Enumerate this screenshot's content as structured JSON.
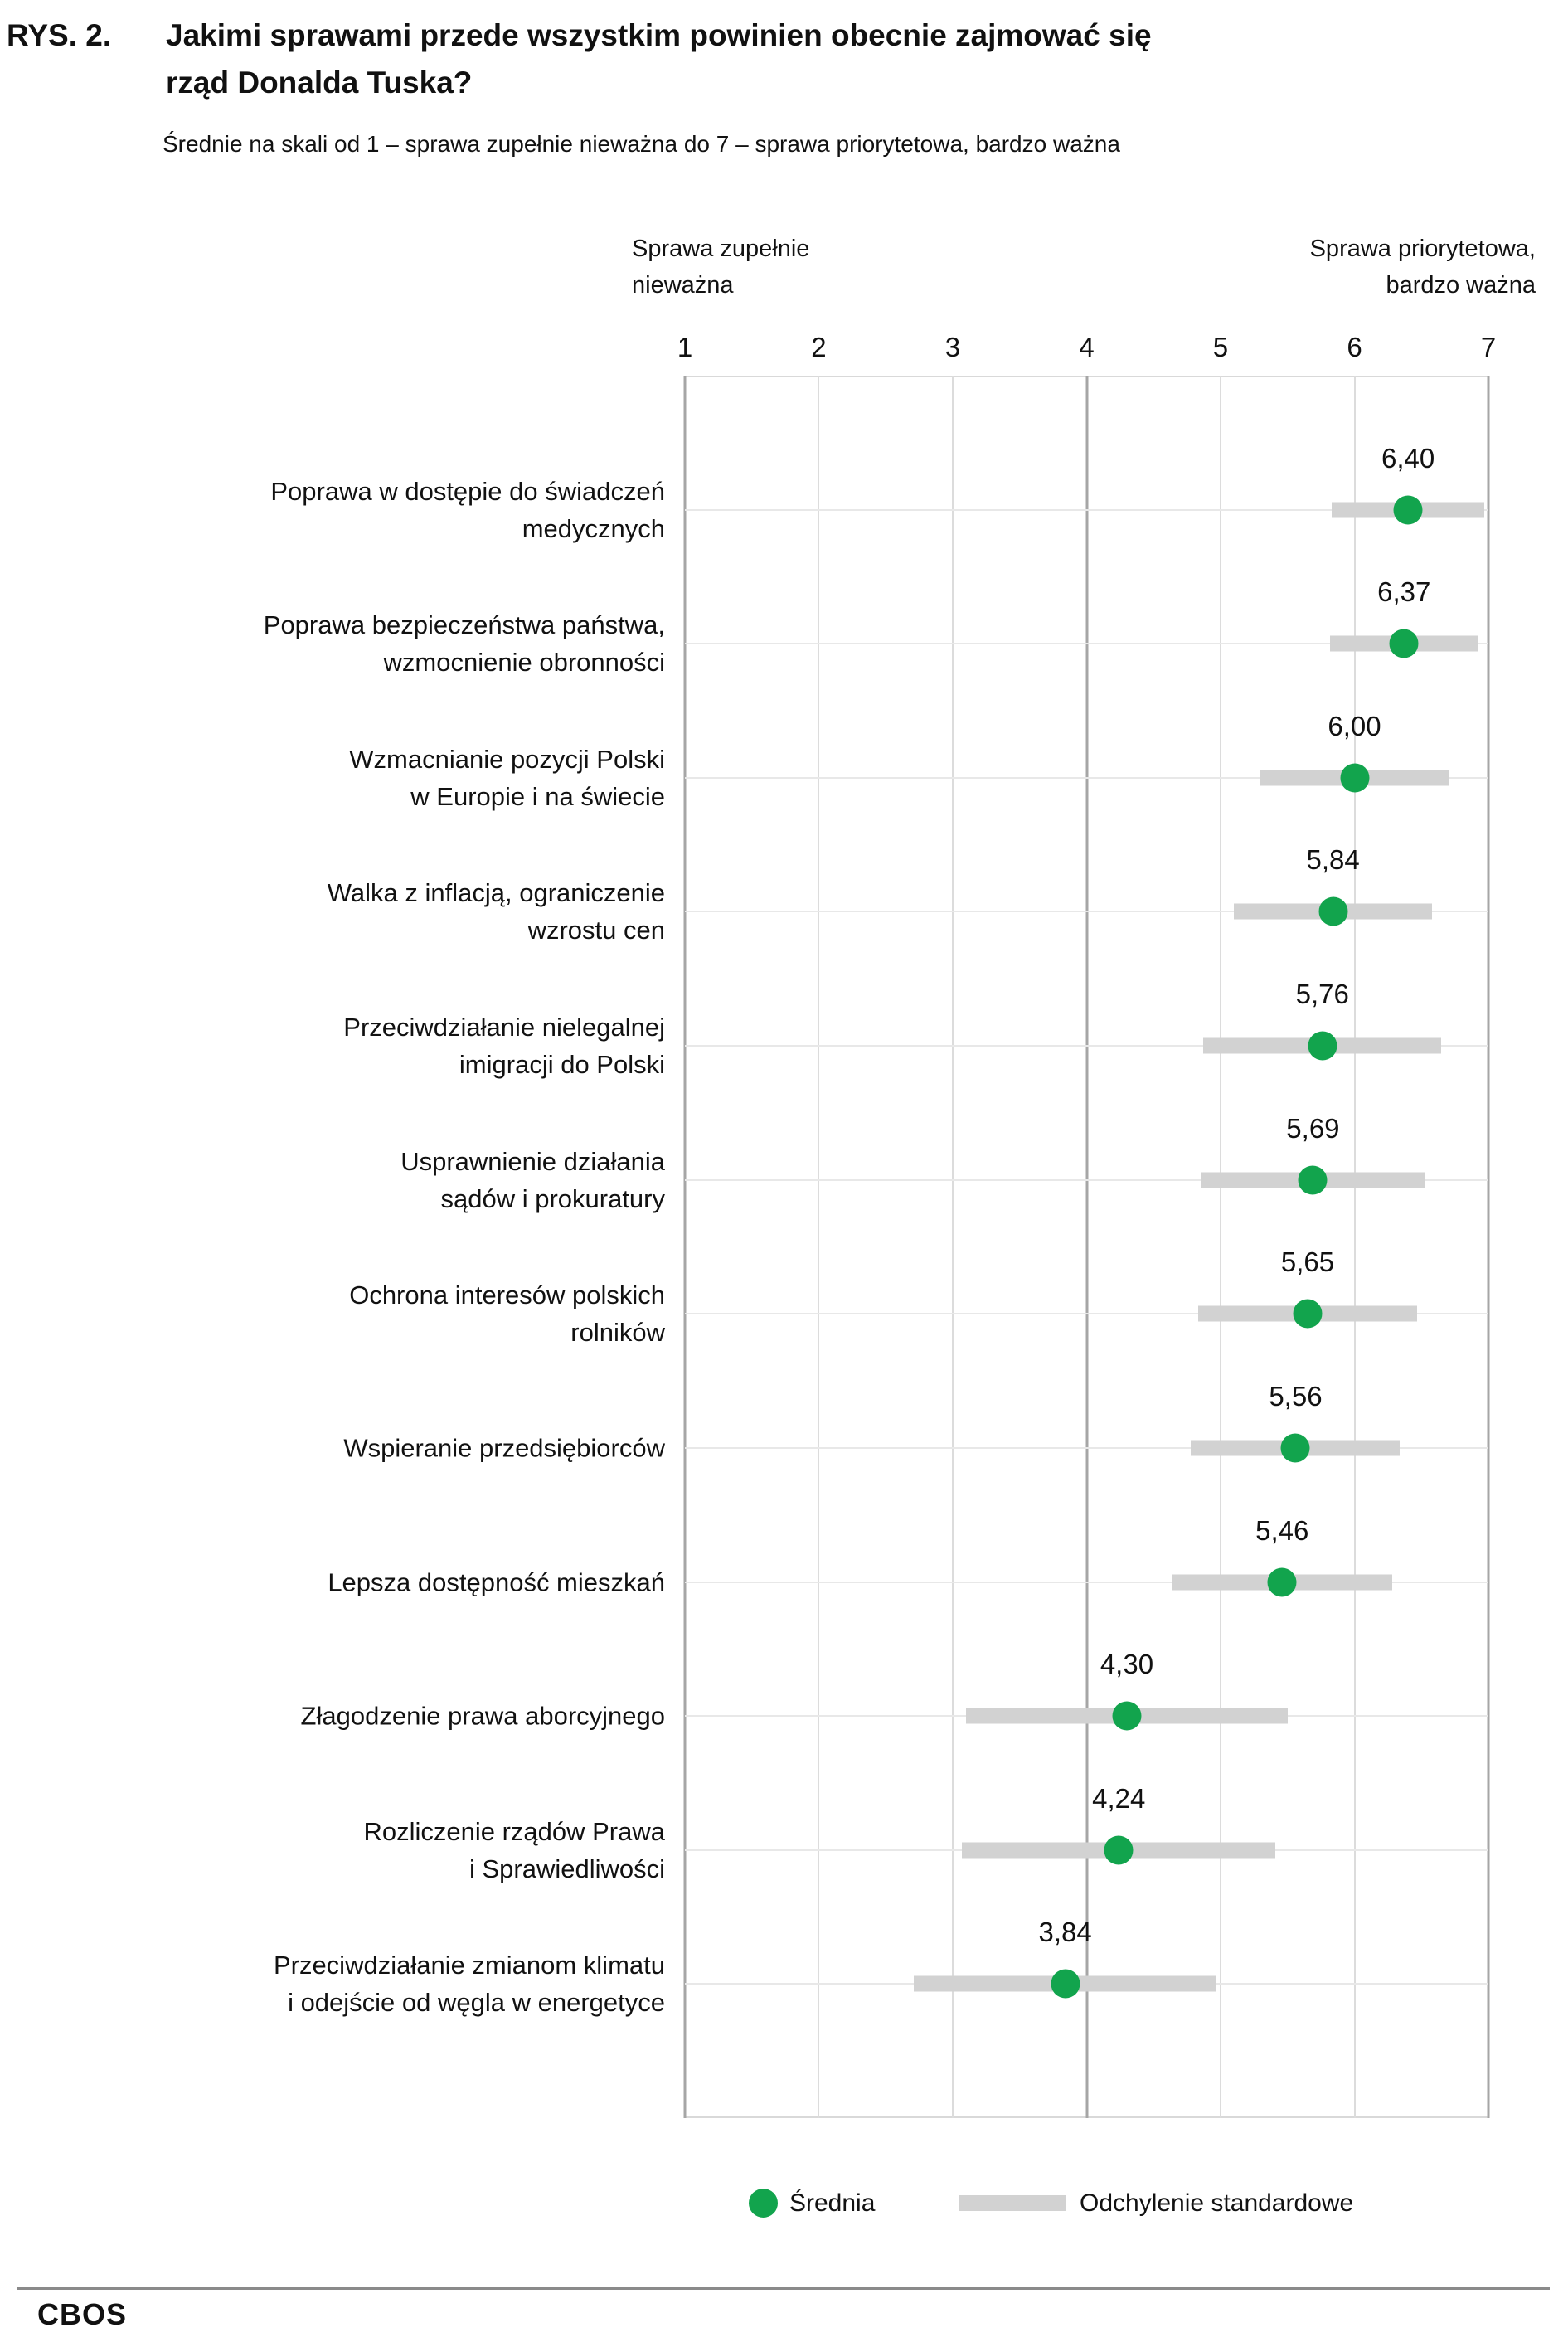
{
  "title": {
    "prefix": "RYS. 2.",
    "line1": "Jakimi sprawami przede wszystkim powinien obecnie zajmować się",
    "line2": "rząd Donalda Tuska?"
  },
  "subtitle": "Średnie na skali od 1 – sprawa zupełnie nieważna do 7 – sprawa priorytetowa, bardzo ważna",
  "axis": {
    "left_note": "Sprawa zupełnie\nnieważna",
    "right_note": "Sprawa priorytetowa,\nbardzo ważna"
  },
  "legend": {
    "mean_label": "Średnia",
    "sd_label": "Odchylenie standardowe"
  },
  "footer": {
    "brand": "CBOS"
  },
  "colors": {
    "mean_dot": "#12a44d",
    "sd_bar": "#d2d2d2",
    "grid_light": "#dcdcdc",
    "grid_row": "#e8e8e8",
    "grid_dark": "#a6a6a6",
    "text": "#111111"
  },
  "chart_data": {
    "type": "scatter",
    "subtype": "dot-plot-with-sd-range",
    "orientation": "horizontal",
    "xlim": [
      1,
      7
    ],
    "ticks": [
      1,
      2,
      3,
      4,
      5,
      6,
      7
    ],
    "emphasized_gridline": 4,
    "grid": true,
    "legend_position": "bottom",
    "title": "Jakimi sprawami przede wszystkim powinien obecnie zajmować się rząd Donalda Tuska?",
    "xlabel_left": "Sprawa zupełnie nieważna",
    "xlabel_right": "Sprawa priorytetowa, bardzo ważna",
    "categories": [
      "Poprawa w dostępie do świadczeń medycznych",
      "Poprawa bezpieczeństwa państwa, wzmocnienie obronności",
      "Wzmacnianie pozycji Polski w Europie i na świecie",
      "Walka z inflacją, ograniczenie wzrostu cen",
      "Przeciwdziałanie nielegalnej imigracji do Polski",
      "Usprawnienie działania sądów i prokuratury",
      "Ochrona interesów polskich rolników",
      "Wspieranie przedsiębiorców",
      "Lepsza dostępność mieszkań",
      "Złagodzenie prawa aborcyjnego",
      "Rozliczenie rządów Prawa i Sprawiedliwości",
      "Przeciwdziałanie zmianom klimatu i odejście od węgla w energetyce"
    ],
    "rows": [
      {
        "label_lines": [
          "Poprawa w dostępie do świadczeń",
          "medycznych"
        ],
        "mean": 6.4,
        "mean_label": "6,40",
        "sd_half": 0.57
      },
      {
        "label_lines": [
          "Poprawa bezpieczeństwa państwa,",
          "wzmocnienie obronności"
        ],
        "mean": 6.37,
        "mean_label": "6,37",
        "sd_half": 0.55
      },
      {
        "label_lines": [
          "Wzmacnianie pozycji Polski",
          "w Europie i na świecie"
        ],
        "mean": 6.0,
        "mean_label": "6,00",
        "sd_half": 0.7
      },
      {
        "label_lines": [
          "Walka z inflacją, ograniczenie",
          "wzrostu cen"
        ],
        "mean": 5.84,
        "mean_label": "5,84",
        "sd_half": 0.74
      },
      {
        "label_lines": [
          "Przeciwdziałanie nielegalnej",
          "imigracji do Polski"
        ],
        "mean": 5.76,
        "mean_label": "5,76",
        "sd_half": 0.89
      },
      {
        "label_lines": [
          "Usprawnienie działania",
          "sądów i prokuratury"
        ],
        "mean": 5.69,
        "mean_label": "5,69",
        "sd_half": 0.84
      },
      {
        "label_lines": [
          "Ochrona interesów polskich",
          "rolników"
        ],
        "mean": 5.65,
        "mean_label": "5,65",
        "sd_half": 0.82
      },
      {
        "label_lines": [
          "Wspieranie przedsiębiorców"
        ],
        "mean": 5.56,
        "mean_label": "5,56",
        "sd_half": 0.78
      },
      {
        "label_lines": [
          "Lepsza dostępność mieszkań"
        ],
        "mean": 5.46,
        "mean_label": "5,46",
        "sd_half": 0.82
      },
      {
        "label_lines": [
          "Złagodzenie prawa aborcyjnego"
        ],
        "mean": 4.3,
        "mean_label": "4,30",
        "sd_half": 1.2
      },
      {
        "label_lines": [
          "Rozliczenie rządów Prawa",
          "i Sprawiedliwości"
        ],
        "mean": 4.24,
        "mean_label": "4,24",
        "sd_half": 1.17
      },
      {
        "label_lines": [
          "Przeciwdziałanie zmianom klimatu",
          "i odejście od węgla w energetyce"
        ],
        "mean": 3.84,
        "mean_label": "3,84",
        "sd_half": 1.13
      }
    ]
  }
}
